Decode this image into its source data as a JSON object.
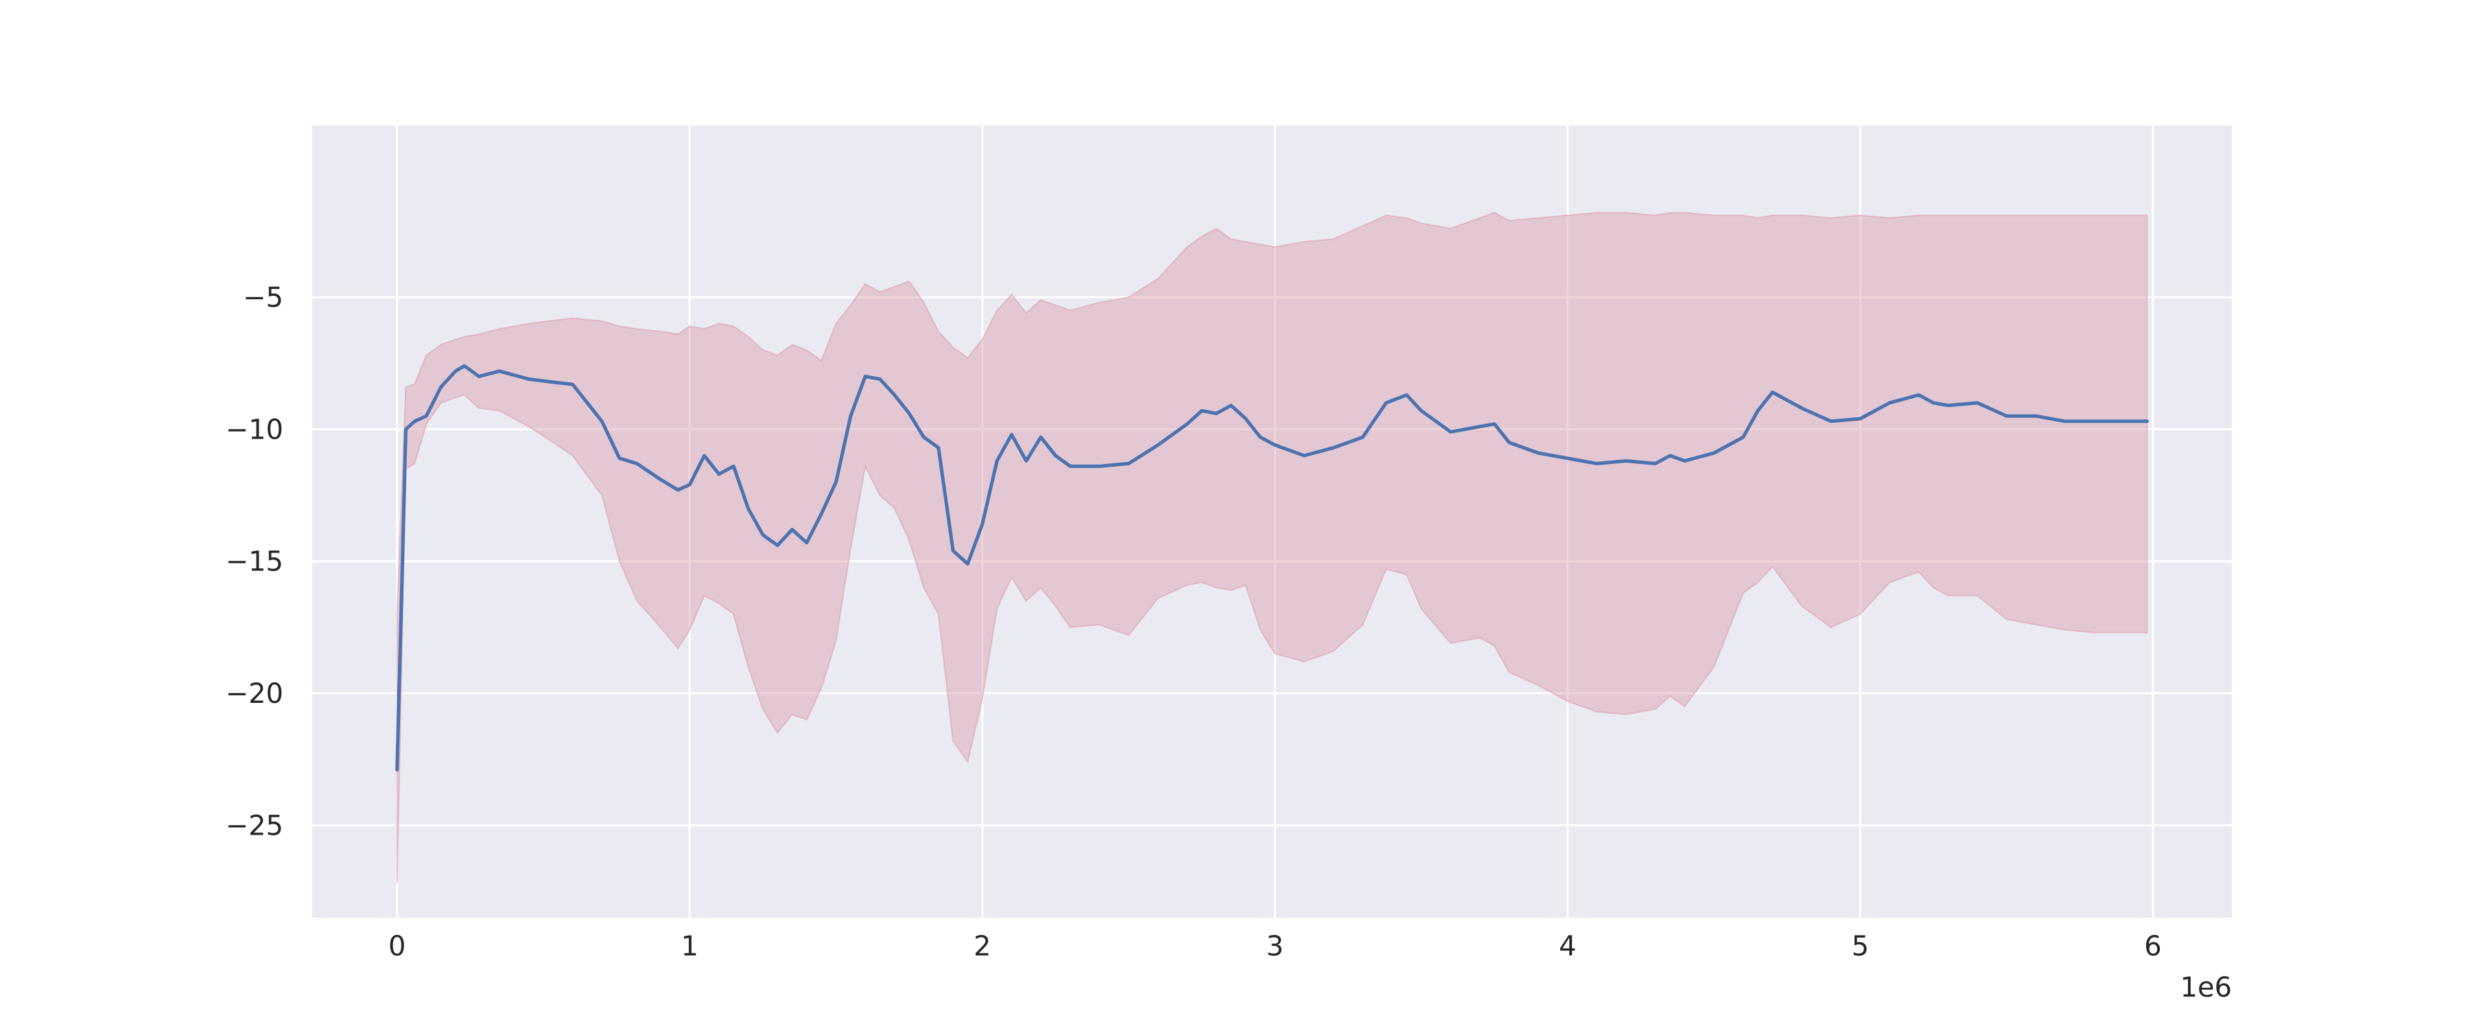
{
  "chart_data": {
    "type": "line",
    "title": "",
    "xlabel": "",
    "ylabel": "",
    "x_offset_text": "1e6",
    "xlim": [
      -290000,
      6270000
    ],
    "ylim": [
      -28.5,
      1.5
    ],
    "x_ticks": [
      0,
      1000000,
      2000000,
      3000000,
      4000000,
      5000000,
      6000000
    ],
    "x_tick_labels": [
      "0",
      "1",
      "2",
      "3",
      "4",
      "5",
      "6"
    ],
    "y_ticks": [
      -5,
      -10,
      -15,
      -20,
      -25
    ],
    "y_tick_labels": [
      "−5",
      "−10",
      "−15",
      "−20",
      "−25"
    ],
    "grid": true,
    "legend": "none",
    "colors": {
      "background": "#eaeaf2",
      "grid": "#ffffff",
      "line": "#4c72b0",
      "band": "#dba0ad"
    },
    "series": [
      {
        "x": [
          0,
          30000,
          60000,
          100000,
          150000,
          200000,
          230000,
          280000,
          350000,
          450000,
          520000,
          600000,
          700000,
          760000,
          820000,
          900000,
          960000,
          1000000,
          1050000,
          1100000,
          1150000,
          1200000,
          1250000,
          1300000,
          1350000,
          1400000,
          1450000,
          1500000,
          1550000,
          1600000,
          1650000,
          1700000,
          1750000,
          1800000,
          1850000,
          1900000,
          1950000,
          2000000,
          2050000,
          2100000,
          2150000,
          2200000,
          2250000,
          2300000,
          2400000,
          2500000,
          2600000,
          2700000,
          2750000,
          2800000,
          2850000,
          2900000,
          2950000,
          3000000,
          3100000,
          3200000,
          3300000,
          3380000,
          3450000,
          3500000,
          3600000,
          3700000,
          3750000,
          3800000,
          3900000,
          4000000,
          4100000,
          4200000,
          4300000,
          4350000,
          4400000,
          4500000,
          4600000,
          4650000,
          4700000,
          4800000,
          4900000,
          5000000,
          5100000,
          5200000,
          5250000,
          5300000,
          5400000,
          5500000,
          5600000,
          5700000,
          5800000,
          5980000
        ],
        "mean": [
          -22.9,
          -10.0,
          -9.7,
          -9.5,
          -8.4,
          -7.8,
          -7.6,
          -8.0,
          -7.8,
          -8.1,
          -8.2,
          -8.3,
          -9.7,
          -11.1,
          -11.3,
          -11.9,
          -12.3,
          -12.1,
          -11.0,
          -11.7,
          -11.4,
          -13.0,
          -14.0,
          -14.4,
          -13.8,
          -14.3,
          -13.2,
          -12.0,
          -9.5,
          -8.0,
          -8.1,
          -8.7,
          -9.4,
          -10.3,
          -10.7,
          -14.6,
          -15.1,
          -13.6,
          -11.2,
          -10.2,
          -11.2,
          -10.3,
          -11.0,
          -11.4,
          -11.4,
          -11.3,
          -10.6,
          -9.8,
          -9.3,
          -9.4,
          -9.1,
          -9.6,
          -10.3,
          -10.6,
          -11.0,
          -10.7,
          -10.3,
          -9.0,
          -8.7,
          -9.3,
          -10.1,
          -9.9,
          -9.8,
          -10.5,
          -10.9,
          -11.1,
          -11.3,
          -11.2,
          -11.3,
          -11.0,
          -11.2,
          -10.9,
          -10.3,
          -9.3,
          -8.6,
          -9.2,
          -9.7,
          -9.6,
          -9.0,
          -8.7,
          -9.0,
          -9.1,
          -9.0,
          -9.5,
          -9.5,
          -9.7,
          -9.7,
          -9.7
        ],
        "upper": [
          -17.0,
          -8.4,
          -8.3,
          -7.2,
          -6.8,
          -6.6,
          -6.5,
          -6.4,
          -6.2,
          -6.0,
          -5.9,
          -5.8,
          -5.9,
          -6.1,
          -6.2,
          -6.3,
          -6.4,
          -6.1,
          -6.2,
          -6.0,
          -6.1,
          -6.5,
          -7.0,
          -7.2,
          -6.8,
          -7.0,
          -7.4,
          -6.0,
          -5.3,
          -4.5,
          -4.8,
          -4.6,
          -4.4,
          -5.2,
          -6.3,
          -6.9,
          -7.3,
          -6.6,
          -5.5,
          -4.9,
          -5.6,
          -5.1,
          -5.3,
          -5.5,
          -5.2,
          -5.0,
          -4.3,
          -3.1,
          -2.7,
          -2.4,
          -2.8,
          -2.9,
          -3.0,
          -3.1,
          -2.9,
          -2.8,
          -2.3,
          -1.9,
          -2.0,
          -2.2,
          -2.4,
          -2.0,
          -1.8,
          -2.1,
          -2.0,
          -1.9,
          -1.8,
          -1.8,
          -1.9,
          -1.8,
          -1.8,
          -1.9,
          -1.9,
          -2.0,
          -1.9,
          -1.9,
          -2.0,
          -1.9,
          -2.0,
          -1.9,
          -1.9,
          -1.9,
          -1.9,
          -1.9,
          -1.9,
          -1.9,
          -1.9,
          -1.9
        ],
        "lower": [
          -27.2,
          -11.5,
          -11.3,
          -9.8,
          -9.0,
          -8.8,
          -8.7,
          -9.2,
          -9.3,
          -9.9,
          -10.4,
          -11.0,
          -12.5,
          -15.0,
          -16.5,
          -17.5,
          -18.3,
          -17.6,
          -16.3,
          -16.6,
          -17.0,
          -19.0,
          -20.6,
          -21.5,
          -20.8,
          -21.0,
          -19.8,
          -18.0,
          -14.5,
          -11.4,
          -12.5,
          -13.0,
          -14.2,
          -16.0,
          -17.0,
          -21.8,
          -22.6,
          -20.2,
          -16.8,
          -15.6,
          -16.5,
          -16.0,
          -16.7,
          -17.5,
          -17.4,
          -17.8,
          -16.4,
          -15.9,
          -15.8,
          -16.0,
          -16.1,
          -15.9,
          -17.6,
          -18.5,
          -18.8,
          -18.4,
          -17.4,
          -15.3,
          -15.5,
          -16.8,
          -18.1,
          -17.9,
          -18.2,
          -19.2,
          -19.7,
          -20.3,
          -20.7,
          -20.8,
          -20.6,
          -20.1,
          -20.5,
          -19.0,
          -16.2,
          -15.8,
          -15.2,
          -16.7,
          -17.5,
          -17.0,
          -15.8,
          -15.4,
          -16.0,
          -16.3,
          -16.3,
          -17.2,
          -17.4,
          -17.6,
          -17.7,
          -17.7
        ]
      }
    ]
  }
}
